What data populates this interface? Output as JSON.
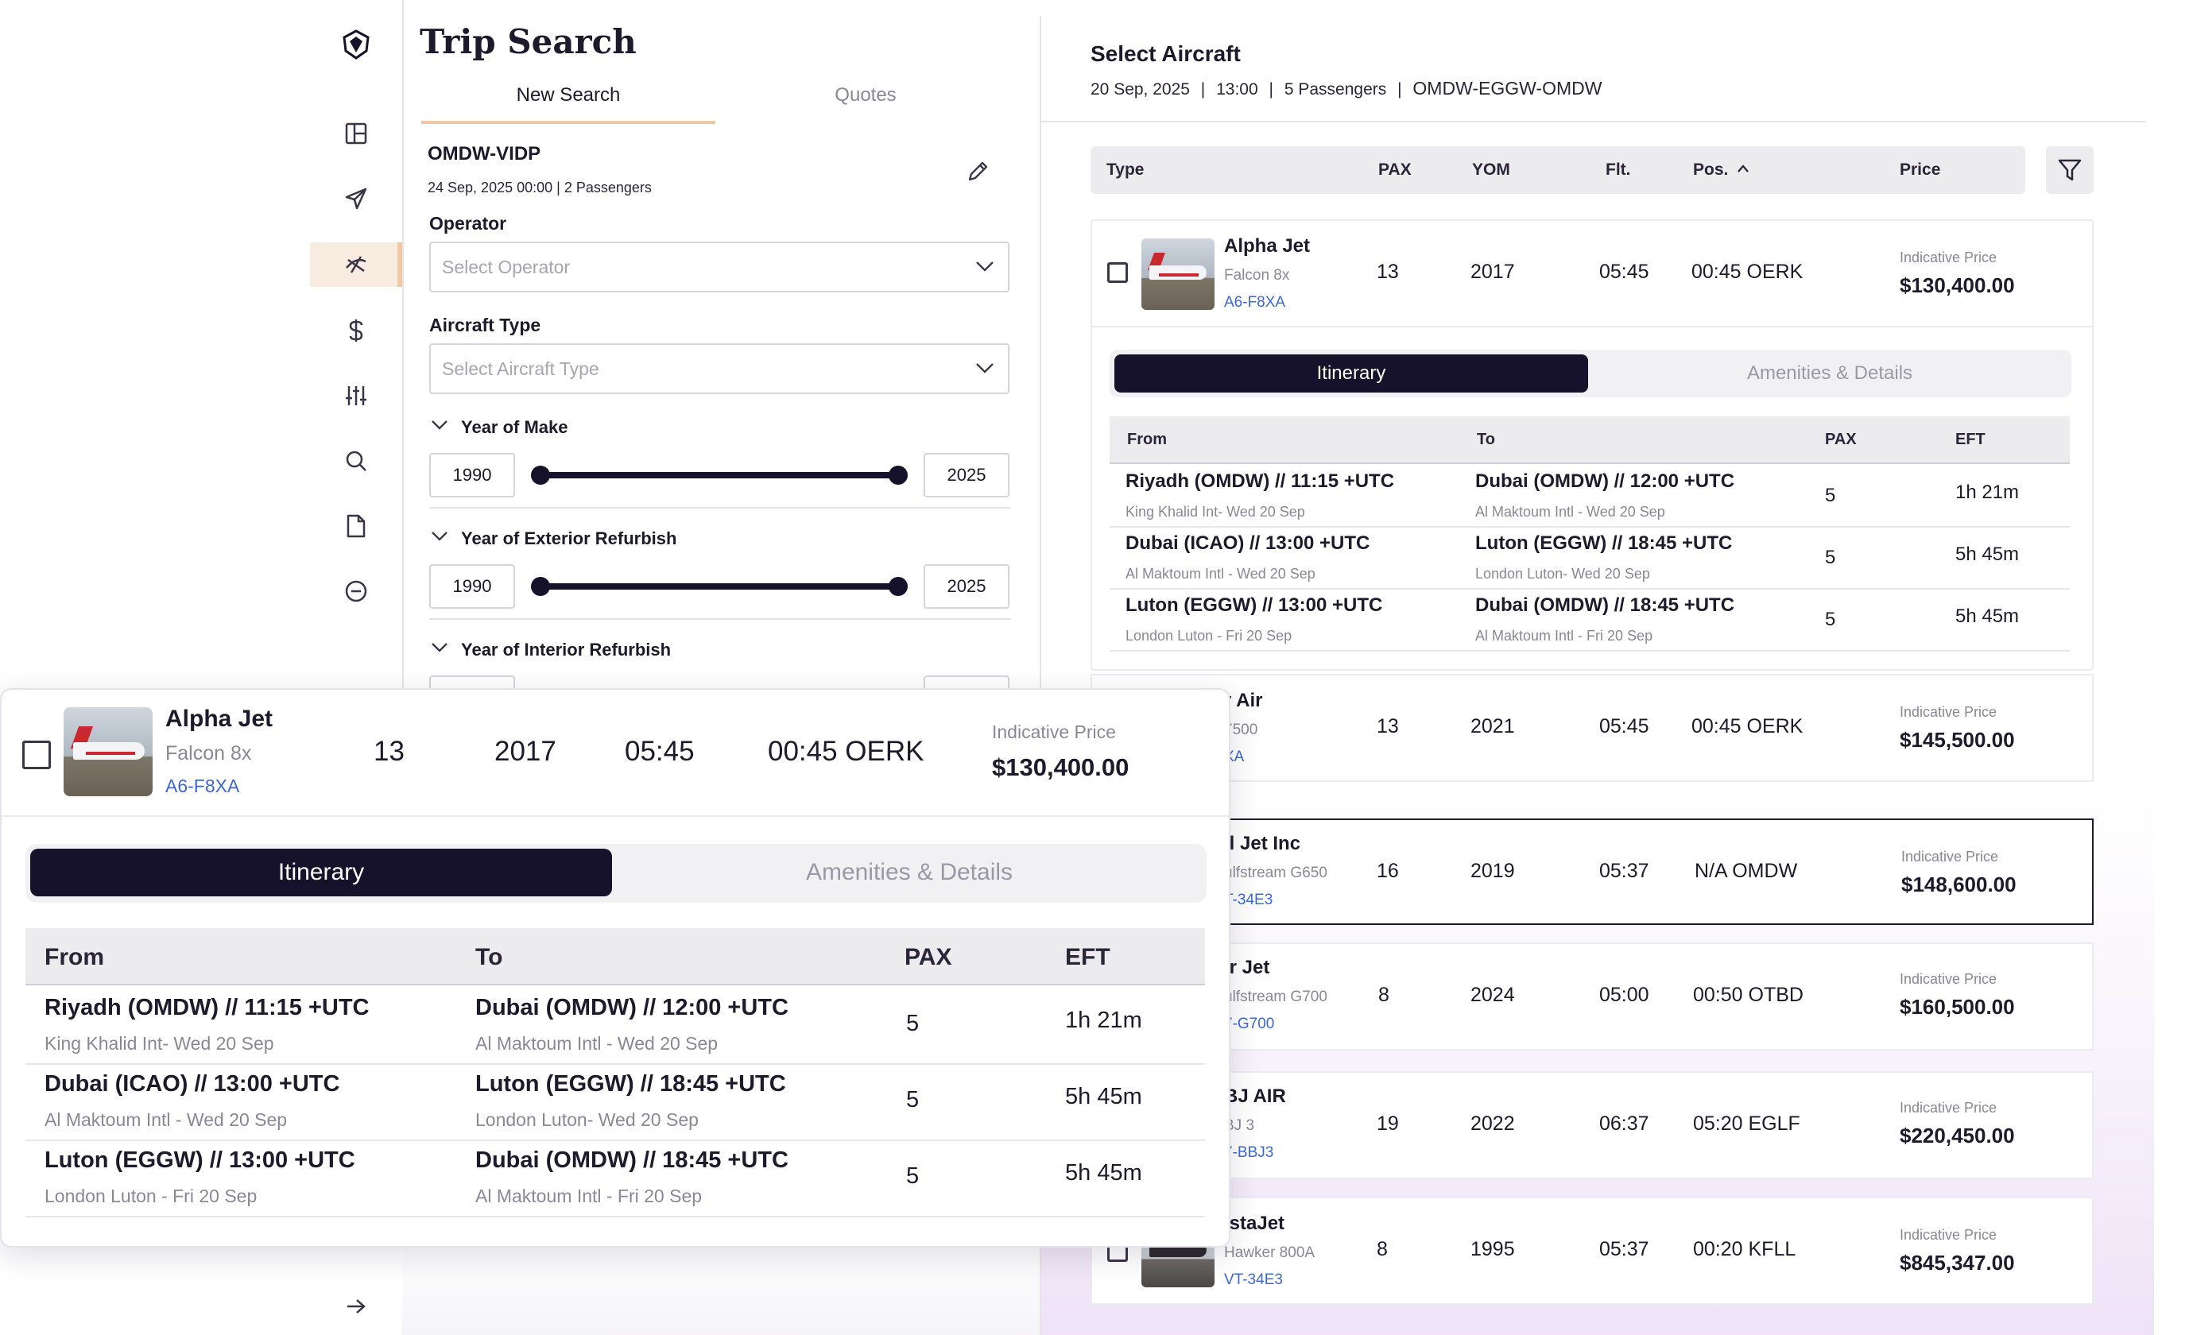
{
  "sidebar": {
    "items": [
      {
        "icon": "dashboard-icon"
      },
      {
        "icon": "send-icon"
      },
      {
        "icon": "flights-icon",
        "active": true
      },
      {
        "icon": "dollar-icon"
      },
      {
        "icon": "sliders-icon"
      },
      {
        "icon": "search-icon"
      },
      {
        "icon": "document-icon"
      },
      {
        "icon": "minus-circle-icon"
      }
    ],
    "collapse_icon": "arrow-right-icon"
  },
  "trip_search": {
    "title": "Trip Search",
    "tabs": [
      "New Search",
      "Quotes"
    ],
    "route": "OMDW-VIDP",
    "route_meta": "24 Sep, 2025 00:00 | 2 Passengers",
    "operator_label": "Operator",
    "operator_placeholder": "Select Operator",
    "aircraft_type_label": "Aircraft Type",
    "aircraft_type_placeholder": "Select Aircraft Type",
    "year_of_make": {
      "label": "Year of Make",
      "min": "1990",
      "max": "2025"
    },
    "year_exterior": {
      "label": "Year of Exterior Refurbish",
      "min": "1990",
      "max": "2025"
    },
    "year_interior": {
      "label": "Year of Interior Refurbish"
    }
  },
  "select_aircraft": {
    "title": "Select Aircraft",
    "date": "20 Sep, 2025",
    "time": "13:00",
    "passengers": "5 Passengers",
    "route": "OMDW-EGGW-OMDW",
    "columns": {
      "type": "Type",
      "pax": "PAX",
      "yom": "YOM",
      "flt": "Flt.",
      "pos": "Pos.",
      "price": "Price"
    },
    "price_label": "Indicative Price",
    "rows": [
      {
        "name": "Alpha Jet",
        "model": "Falcon 8x",
        "reg": "A6-F8XA",
        "pax": "13",
        "yom": "2017",
        "flt": "05:45",
        "pos": "00:45 OERK",
        "price": "$130,400.00"
      },
      {
        "name": "r Air",
        "model": "7500",
        "reg": "XA",
        "pax": "13",
        "yom": "2021",
        "flt": "05:45",
        "pos": "00:45 OERK",
        "price": "$145,500.00"
      },
      {
        "name": "ll Jet Inc",
        "model": "ulfstream G650",
        "reg": "T-34E3",
        "pax": "16",
        "yom": "2019",
        "flt": "05:37",
        "pos": "N/A OMDW",
        "price": "$148,600.00"
      },
      {
        "name": "ir Jet",
        "model": "ulfstream G700",
        "reg": "7-G700",
        "pax": "8",
        "yom": "2024",
        "flt": "05:00",
        "pos": "00:50 OTBD",
        "price": "$160,500.00"
      },
      {
        "name": "BJ AIR",
        "model": "BJ 3",
        "reg": "7-BBJ3",
        "pax": "19",
        "yom": "2022",
        "flt": "06:37",
        "pos": "05:20 EGLF",
        "price": "$220,450.00"
      },
      {
        "name": "istaJet",
        "model": "Hawker 800A",
        "reg": "VT-34E3",
        "pax": "8",
        "yom": "1995",
        "flt": "05:37",
        "pos": "00:20 KFLL",
        "price": "$845,347.00"
      }
    ]
  },
  "itinerary": {
    "tabs": [
      "Itinerary",
      "Amenities & Details"
    ],
    "columns": {
      "from": "From",
      "to": "To",
      "pax": "PAX",
      "eft": "EFT"
    },
    "legs": [
      {
        "from": "Riyadh (OMDW) // 11:15 +UTC",
        "from_sub": "King Khalid Int- Wed 20 Sep",
        "to": "Dubai (OMDW) // 12:00 +UTC",
        "to_sub": "Al Maktoum Intl - Wed 20 Sep",
        "pax": "5",
        "eft": "1h 21m"
      },
      {
        "from": "Dubai (ICAO) // 13:00 +UTC",
        "from_sub": "Al Maktoum Intl - Wed 20 Sep",
        "to": "Luton (EGGW) // 18:45 +UTC",
        "to_sub": "London Luton- Wed 20 Sep",
        "pax": "5",
        "eft": "5h 45m"
      },
      {
        "from": "Luton (EGGW) // 13:00 +UTC",
        "from_sub": "London Luton - Fri 20 Sep",
        "to": "Dubai (OMDW) // 18:45 +UTC",
        "to_sub": "Al Maktoum Intl - Fri 20 Sep",
        "pax": "5",
        "eft": "5h 45m"
      }
    ]
  },
  "colors": {
    "accent": "#17122b",
    "link": "#3b67d6",
    "highlight": "#f0c8a2"
  }
}
